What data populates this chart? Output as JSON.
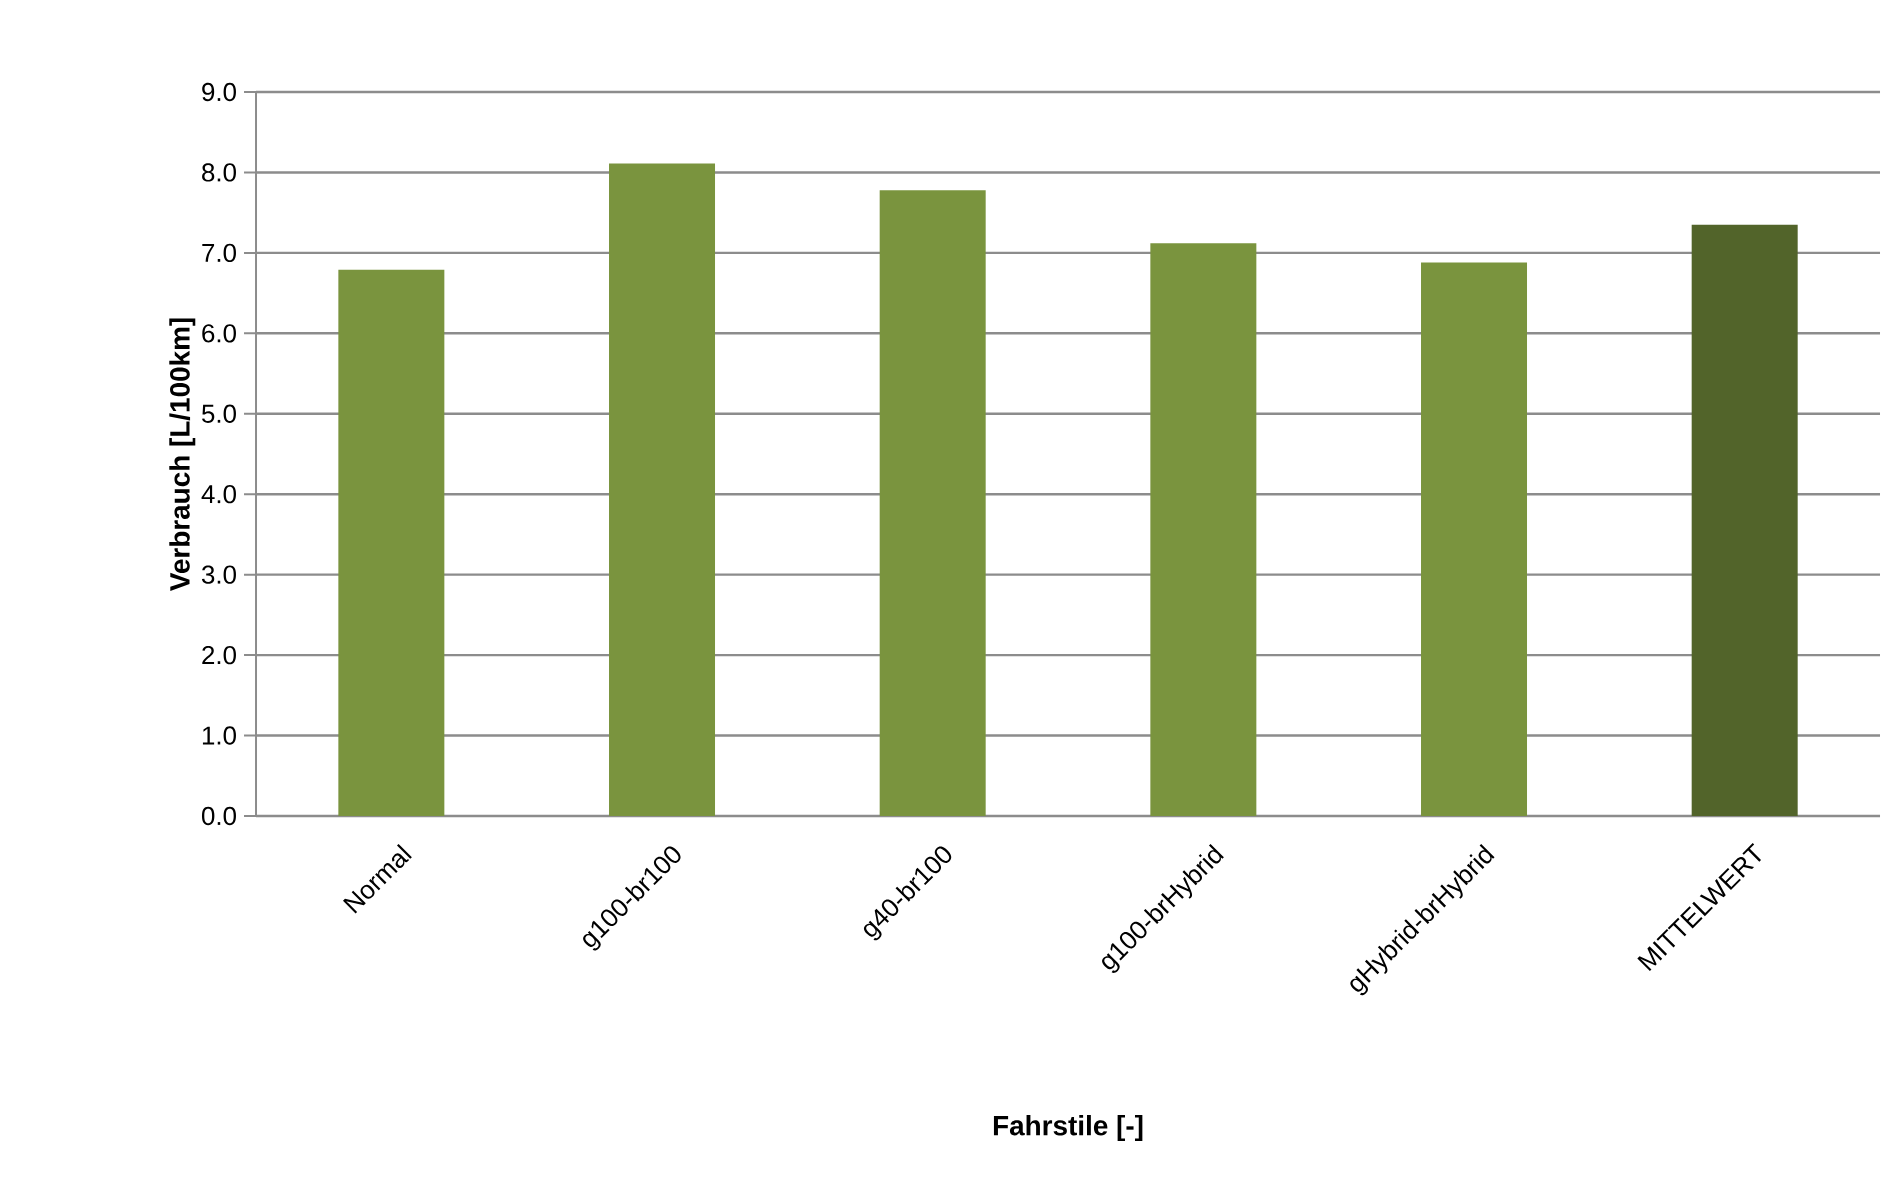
{
  "chart_data": {
    "type": "bar",
    "xlabel": "Fahrstile [-]",
    "ylabel": "Verbrauch [L/100km]",
    "categories": [
      "Normal",
      "g100-br100",
      "g40-br100",
      "g100-brHybrid",
      "gHybrid-brHybrid",
      "MITTELWERT"
    ],
    "values": [
      6.79,
      8.11,
      7.78,
      7.12,
      6.88,
      7.35
    ],
    "colors": [
      "#7a943e",
      "#7a943e",
      "#7a943e",
      "#7a943e",
      "#7a943e",
      "#52642a"
    ],
    "ylim": [
      0,
      9
    ],
    "yticks": [
      {
        "value": 0,
        "label": "0.0"
      },
      {
        "value": 1,
        "label": "1.0"
      },
      {
        "value": 2,
        "label": "2.0"
      },
      {
        "value": 3,
        "label": "3.0"
      },
      {
        "value": 4,
        "label": "4.0"
      },
      {
        "value": 5,
        "label": "5.0"
      },
      {
        "value": 6,
        "label": "6.0"
      },
      {
        "value": 7,
        "label": "7.0"
      },
      {
        "value": 8,
        "label": "8.0"
      },
      {
        "value": 9,
        "label": "9.0"
      }
    ],
    "grid": "y"
  }
}
